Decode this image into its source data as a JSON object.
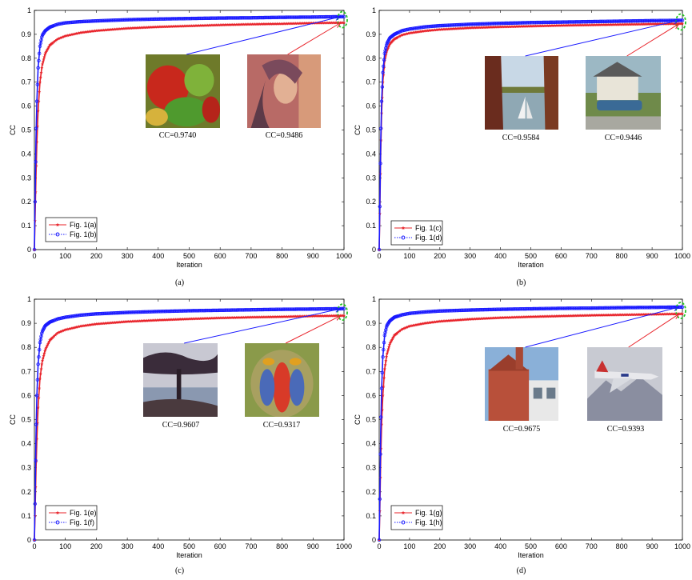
{
  "chart_data": [
    {
      "type": "line",
      "panel_label": "(a)",
      "xlabel": "Iteration",
      "ylabel": "CC",
      "xlim": [
        0,
        1000
      ],
      "ylim": [
        0,
        1
      ],
      "x_ticks": [
        0,
        100,
        200,
        300,
        400,
        500,
        600,
        700,
        800,
        900,
        1000
      ],
      "y_ticks": [
        0,
        0.1,
        0.2,
        0.3,
        0.4,
        0.5,
        0.6,
        0.7,
        0.8,
        0.9,
        1
      ],
      "grid": false,
      "legend_position": "bottom-left",
      "series": [
        {
          "name": "Fig. 1(a)",
          "color": "#e8232a",
          "marker": "star",
          "line": "solid",
          "final_value": 0.9486,
          "points": [
            [
              0,
              0.0
            ],
            [
              2,
              0.12
            ],
            [
              5,
              0.3
            ],
            [
              8,
              0.45
            ],
            [
              12,
              0.58
            ],
            [
              18,
              0.7
            ],
            [
              25,
              0.77
            ],
            [
              35,
              0.82
            ],
            [
              50,
              0.855
            ],
            [
              75,
              0.88
            ],
            [
              100,
              0.893
            ],
            [
              150,
              0.907
            ],
            [
              200,
              0.915
            ],
            [
              300,
              0.925
            ],
            [
              400,
              0.931
            ],
            [
              500,
              0.935
            ],
            [
              600,
              0.939
            ],
            [
              700,
              0.942
            ],
            [
              800,
              0.944
            ],
            [
              900,
              0.947
            ],
            [
              1000,
              0.9486
            ]
          ]
        },
        {
          "name": "Fig. 1(b)",
          "color": "#1a1aff",
          "marker": "circle",
          "line": "dotted",
          "final_value": 0.974,
          "points": [
            [
              0,
              0.0
            ],
            [
              2,
              0.2
            ],
            [
              5,
              0.45
            ],
            [
              8,
              0.62
            ],
            [
              12,
              0.76
            ],
            [
              18,
              0.85
            ],
            [
              25,
              0.895
            ],
            [
              35,
              0.915
            ],
            [
              50,
              0.93
            ],
            [
              75,
              0.942
            ],
            [
              100,
              0.948
            ],
            [
              150,
              0.953
            ],
            [
              200,
              0.956
            ],
            [
              300,
              0.961
            ],
            [
              400,
              0.964
            ],
            [
              500,
              0.966
            ],
            [
              600,
              0.968
            ],
            [
              700,
              0.969
            ],
            [
              800,
              0.971
            ],
            [
              900,
              0.972
            ],
            [
              1000,
              0.974
            ]
          ]
        }
      ],
      "annotations": [
        {
          "text": "CC=0.9740",
          "image": "peppers-photo",
          "series": "Fig. 1(b)"
        },
        {
          "text": "CC=0.9486",
          "image": "lena-photo",
          "series": "Fig. 1(a)"
        }
      ]
    },
    {
      "type": "line",
      "panel_label": "(b)",
      "xlabel": "Iteration",
      "ylabel": "CC",
      "xlim": [
        0,
        1000
      ],
      "ylim": [
        0,
        1
      ],
      "x_ticks": [
        0,
        100,
        200,
        300,
        400,
        500,
        600,
        700,
        800,
        900,
        1000
      ],
      "y_ticks": [
        0,
        0.1,
        0.2,
        0.3,
        0.4,
        0.5,
        0.6,
        0.7,
        0.8,
        0.9,
        1
      ],
      "grid": false,
      "legend_position": "bottom-left",
      "series": [
        {
          "name": "Fig. 1(c)",
          "color": "#e8232a",
          "marker": "star",
          "line": "solid",
          "final_value": 0.9446,
          "points": [
            [
              0,
              0.0
            ],
            [
              2,
              0.15
            ],
            [
              5,
              0.4
            ],
            [
              8,
              0.57
            ],
            [
              12,
              0.7
            ],
            [
              18,
              0.79
            ],
            [
              25,
              0.83
            ],
            [
              35,
              0.86
            ],
            [
              50,
              0.88
            ],
            [
              75,
              0.897
            ],
            [
              100,
              0.905
            ],
            [
              150,
              0.914
            ],
            [
              200,
              0.92
            ],
            [
              300,
              0.927
            ],
            [
              400,
              0.931
            ],
            [
              500,
              0.934
            ],
            [
              600,
              0.937
            ],
            [
              700,
              0.939
            ],
            [
              800,
              0.941
            ],
            [
              900,
              0.943
            ],
            [
              1000,
              0.9446
            ]
          ]
        },
        {
          "name": "Fig. 1(d)",
          "color": "#1a1aff",
          "marker": "circle",
          "line": "dotted",
          "final_value": 0.9584,
          "points": [
            [
              0,
              0.0
            ],
            [
              2,
              0.18
            ],
            [
              5,
              0.45
            ],
            [
              8,
              0.62
            ],
            [
              12,
              0.74
            ],
            [
              18,
              0.82
            ],
            [
              25,
              0.86
            ],
            [
              35,
              0.885
            ],
            [
              50,
              0.9
            ],
            [
              75,
              0.915
            ],
            [
              100,
              0.922
            ],
            [
              150,
              0.931
            ],
            [
              200,
              0.936
            ],
            [
              300,
              0.942
            ],
            [
              400,
              0.946
            ],
            [
              500,
              0.949
            ],
            [
              600,
              0.951
            ],
            [
              700,
              0.953
            ],
            [
              800,
              0.955
            ],
            [
              900,
              0.957
            ],
            [
              1000,
              0.9584
            ]
          ]
        }
      ],
      "annotations": [
        {
          "text": "CC=0.9584",
          "image": "sailboat-lake-photo",
          "series": "Fig. 1(d)"
        },
        {
          "text": "CC=0.9446",
          "image": "house-car-photo",
          "series": "Fig. 1(c)"
        }
      ]
    },
    {
      "type": "line",
      "panel_label": "(c)",
      "xlabel": "Iteration",
      "ylabel": "CC",
      "xlim": [
        0,
        1000
      ],
      "ylim": [
        0,
        1
      ],
      "x_ticks": [
        0,
        100,
        200,
        300,
        400,
        500,
        600,
        700,
        800,
        900,
        1000
      ],
      "y_ticks": [
        0,
        0.1,
        0.2,
        0.3,
        0.4,
        0.5,
        0.6,
        0.7,
        0.8,
        0.9,
        1
      ],
      "grid": false,
      "legend_position": "bottom-left",
      "series": [
        {
          "name": "Fig. 1(e)",
          "color": "#e8232a",
          "marker": "star",
          "line": "solid",
          "final_value": 0.9317,
          "points": [
            [
              0,
              0.0
            ],
            [
              2,
              0.1
            ],
            [
              5,
              0.28
            ],
            [
              8,
              0.42
            ],
            [
              12,
              0.55
            ],
            [
              18,
              0.67
            ],
            [
              25,
              0.74
            ],
            [
              35,
              0.79
            ],
            [
              50,
              0.83
            ],
            [
              75,
              0.86
            ],
            [
              100,
              0.873
            ],
            [
              150,
              0.888
            ],
            [
              200,
              0.897
            ],
            [
              300,
              0.907
            ],
            [
              400,
              0.913
            ],
            [
              500,
              0.918
            ],
            [
              600,
              0.922
            ],
            [
              700,
              0.925
            ],
            [
              800,
              0.927
            ],
            [
              900,
              0.93
            ],
            [
              1000,
              0.9317
            ]
          ]
        },
        {
          "name": "Fig. 1(f)",
          "color": "#1a1aff",
          "marker": "circle",
          "line": "dotted",
          "final_value": 0.9607,
          "points": [
            [
              0,
              0.0
            ],
            [
              2,
              0.15
            ],
            [
              5,
              0.42
            ],
            [
              8,
              0.6
            ],
            [
              12,
              0.73
            ],
            [
              18,
              0.82
            ],
            [
              25,
              0.865
            ],
            [
              35,
              0.89
            ],
            [
              50,
              0.905
            ],
            [
              75,
              0.918
            ],
            [
              100,
              0.925
            ],
            [
              150,
              0.934
            ],
            [
              200,
              0.939
            ],
            [
              300,
              0.945
            ],
            [
              400,
              0.949
            ],
            [
              500,
              0.952
            ],
            [
              600,
              0.954
            ],
            [
              700,
              0.956
            ],
            [
              800,
              0.958
            ],
            [
              900,
              0.959
            ],
            [
              1000,
              0.9607
            ]
          ]
        }
      ],
      "annotations": [
        {
          "text": "CC=0.9607",
          "image": "cypress-tree-photo",
          "series": "Fig. 1(f)"
        },
        {
          "text": "CC=0.9317",
          "image": "mandrill-photo",
          "series": "Fig. 1(e)"
        }
      ]
    },
    {
      "type": "line",
      "panel_label": "(d)",
      "xlabel": "Iteration",
      "ylabel": "CC",
      "xlim": [
        0,
        1000
      ],
      "ylim": [
        0,
        1
      ],
      "x_ticks": [
        0,
        100,
        200,
        300,
        400,
        500,
        600,
        700,
        800,
        900,
        1000
      ],
      "y_ticks": [
        0,
        0.1,
        0.2,
        0.3,
        0.4,
        0.5,
        0.6,
        0.7,
        0.8,
        0.9,
        1
      ],
      "grid": false,
      "legend_position": "bottom-left",
      "series": [
        {
          "name": "Fig. 1(g)",
          "color": "#e8232a",
          "marker": "star",
          "line": "solid",
          "final_value": 0.9393,
          "points": [
            [
              0,
              0.0
            ],
            [
              2,
              0.12
            ],
            [
              5,
              0.33
            ],
            [
              8,
              0.48
            ],
            [
              12,
              0.6
            ],
            [
              18,
              0.71
            ],
            [
              25,
              0.77
            ],
            [
              35,
              0.815
            ],
            [
              50,
              0.85
            ],
            [
              75,
              0.875
            ],
            [
              100,
              0.888
            ],
            [
              150,
              0.9
            ],
            [
              200,
              0.908
            ],
            [
              300,
              0.917
            ],
            [
              400,
              0.923
            ],
            [
              500,
              0.927
            ],
            [
              600,
              0.93
            ],
            [
              700,
              0.933
            ],
            [
              800,
              0.935
            ],
            [
              900,
              0.937
            ],
            [
              1000,
              0.9393
            ]
          ]
        },
        {
          "name": "Fig. 1(h)",
          "color": "#1a1aff",
          "marker": "circle",
          "line": "dotted",
          "final_value": 0.9675,
          "points": [
            [
              0,
              0.0
            ],
            [
              2,
              0.17
            ],
            [
              5,
              0.45
            ],
            [
              8,
              0.63
            ],
            [
              12,
              0.76
            ],
            [
              18,
              0.85
            ],
            [
              25,
              0.89
            ],
            [
              35,
              0.91
            ],
            [
              50,
              0.925
            ],
            [
              75,
              0.935
            ],
            [
              100,
              0.941
            ],
            [
              150,
              0.947
            ],
            [
              200,
              0.951
            ],
            [
              300,
              0.955
            ],
            [
              400,
              0.958
            ],
            [
              500,
              0.96
            ],
            [
              600,
              0.962
            ],
            [
              700,
              0.963
            ],
            [
              800,
              0.965
            ],
            [
              900,
              0.966
            ],
            [
              1000,
              0.9675
            ]
          ]
        }
      ],
      "annotations": [
        {
          "text": "CC=0.9675",
          "image": "brick-house-photo",
          "series": "Fig. 1(h)"
        },
        {
          "text": "CC=0.9393",
          "image": "f16-jet-photo",
          "series": "Fig. 1(g)"
        }
      ]
    }
  ]
}
